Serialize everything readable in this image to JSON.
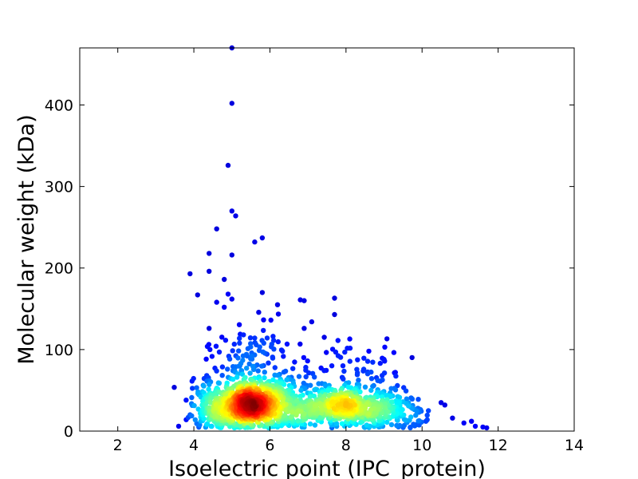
{
  "chart_data": {
    "type": "scatter",
    "title": "",
    "xlabel": "Isoelectric point (IPC_protein)",
    "ylabel": "Molecular weight (kDa)",
    "xlim": [
      1,
      14
    ],
    "ylim": [
      0,
      470
    ],
    "xticks": [
      2,
      4,
      6,
      8,
      10,
      12,
      14
    ],
    "yticks": [
      0,
      100,
      200,
      300,
      400
    ],
    "grid": false,
    "legend": "none",
    "colormap": "jet (point density)",
    "colors": [
      "#00007f",
      "#0000ff",
      "#00ffff",
      "#ffff00",
      "#ff0000",
      "#7f0000"
    ],
    "outliers": [
      {
        "x": 5.0,
        "y": 470
      },
      {
        "x": 5.0,
        "y": 402
      },
      {
        "x": 4.9,
        "y": 326
      },
      {
        "x": 5.0,
        "y": 270
      },
      {
        "x": 5.1,
        "y": 264
      },
      {
        "x": 4.6,
        "y": 248
      },
      {
        "x": 5.8,
        "y": 237
      },
      {
        "x": 5.6,
        "y": 232
      },
      {
        "x": 4.4,
        "y": 218
      },
      {
        "x": 5.0,
        "y": 216
      },
      {
        "x": 4.4,
        "y": 196
      },
      {
        "x": 3.9,
        "y": 193
      },
      {
        "x": 4.8,
        "y": 186
      },
      {
        "x": 5.8,
        "y": 170
      },
      {
        "x": 4.1,
        "y": 167
      },
      {
        "x": 4.9,
        "y": 168
      },
      {
        "x": 5.0,
        "y": 162
      },
      {
        "x": 4.6,
        "y": 158
      },
      {
        "x": 4.8,
        "y": 152
      },
      {
        "x": 6.8,
        "y": 161
      },
      {
        "x": 6.9,
        "y": 160
      },
      {
        "x": 7.7,
        "y": 163
      },
      {
        "x": 6.2,
        "y": 155
      },
      {
        "x": 7.7,
        "y": 143
      },
      {
        "x": 4.4,
        "y": 126
      },
      {
        "x": 7.1,
        "y": 134
      },
      {
        "x": 6.9,
        "y": 126
      },
      {
        "x": 8.1,
        "y": 113
      },
      {
        "x": 3.6,
        "y": 6
      },
      {
        "x": 3.8,
        "y": 14
      },
      {
        "x": 3.9,
        "y": 20
      },
      {
        "x": 10.5,
        "y": 35
      },
      {
        "x": 10.6,
        "y": 32
      },
      {
        "x": 10.8,
        "y": 16
      },
      {
        "x": 11.1,
        "y": 10
      },
      {
        "x": 11.3,
        "y": 12
      },
      {
        "x": 11.4,
        "y": 6
      },
      {
        "x": 11.6,
        "y": 5
      },
      {
        "x": 11.7,
        "y": 4
      },
      {
        "x": 9.0,
        "y": 88
      },
      {
        "x": 9.3,
        "y": 72
      },
      {
        "x": 8.6,
        "y": 98
      },
      {
        "x": 9.9,
        "y": 39
      },
      {
        "x": 10.1,
        "y": 12
      }
    ],
    "clusters": [
      {
        "cx": 5.4,
        "cy": 34,
        "sx": 0.55,
        "sy": 17,
        "n": 820
      },
      {
        "cx": 8.1,
        "cy": 29,
        "sx": 0.75,
        "sy": 13,
        "n": 520
      },
      {
        "cx": 6.6,
        "cy": 26,
        "sx": 0.55,
        "sy": 12,
        "n": 180
      },
      {
        "cx": 5.6,
        "cy": 95,
        "sx": 0.6,
        "sy": 22,
        "n": 90
      },
      {
        "cx": 8.3,
        "cy": 70,
        "sx": 0.7,
        "sy": 18,
        "n": 60
      },
      {
        "cx": 7.2,
        "cy": 60,
        "sx": 0.6,
        "sy": 18,
        "n": 40
      },
      {
        "cx": 9.4,
        "cy": 22,
        "sx": 0.45,
        "sy": 12,
        "n": 60
      },
      {
        "cx": 4.5,
        "cy": 30,
        "sx": 0.3,
        "sy": 16,
        "n": 80
      }
    ]
  }
}
